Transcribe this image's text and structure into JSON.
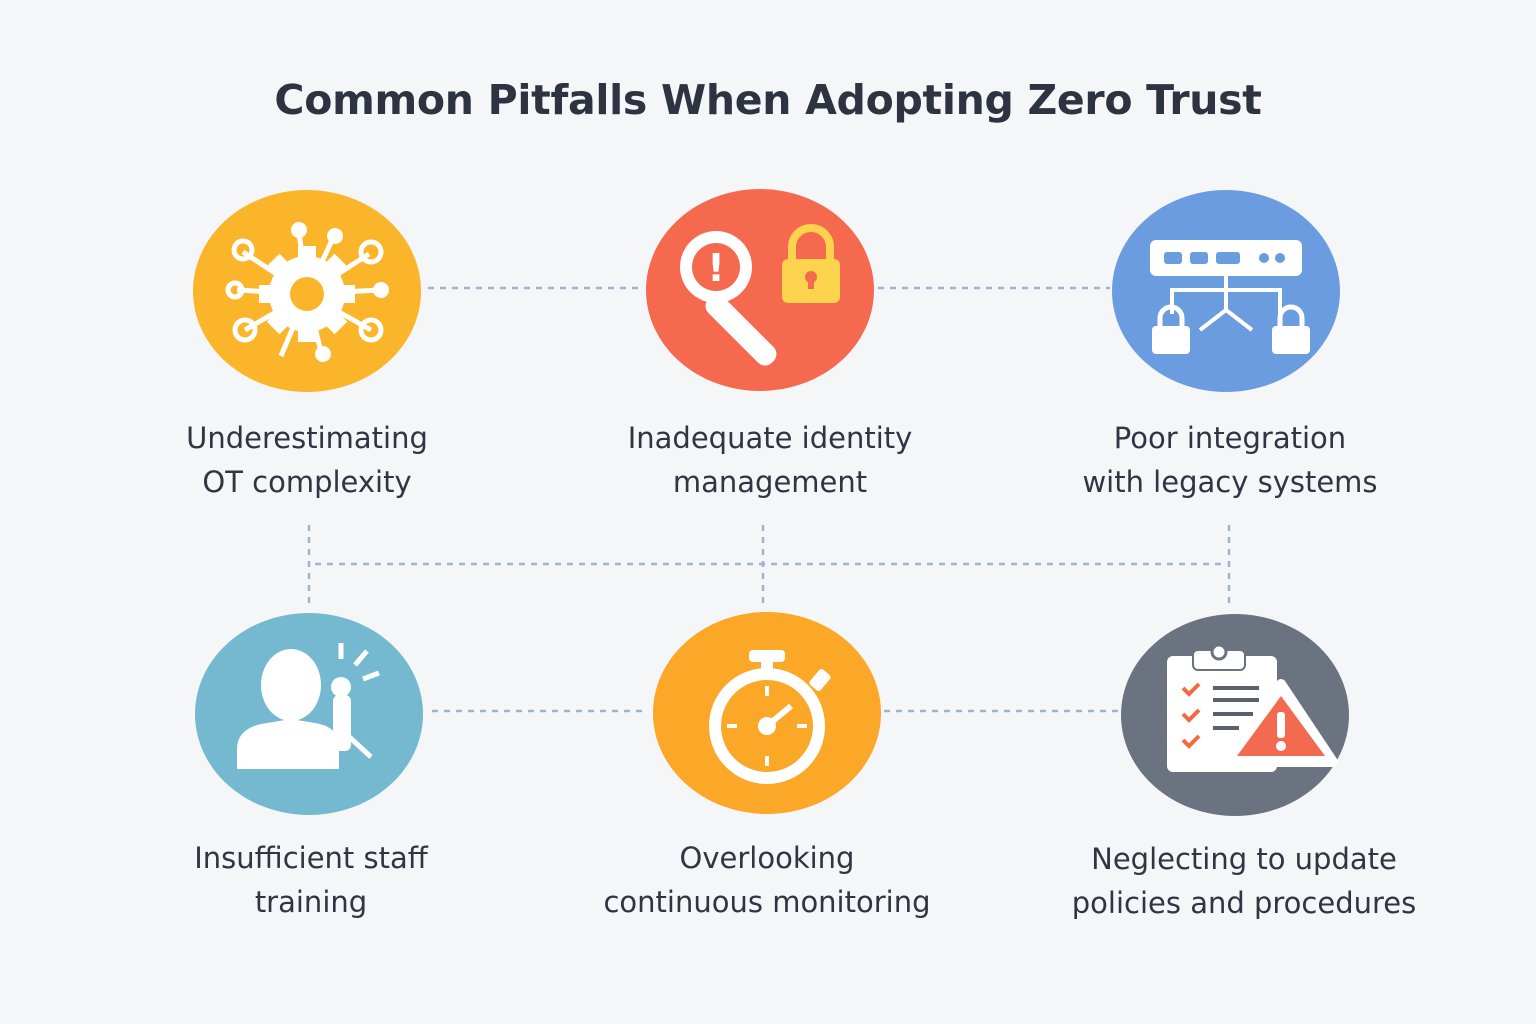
{
  "title": "Common Pitfalls When Adopting Zero Trust",
  "pitfalls": [
    {
      "line1": "Underestimating",
      "line2": "OT complexity",
      "icon": "gear-network-icon",
      "color": "#fbb52a"
    },
    {
      "line1": "Inadequate identity",
      "line2": "management",
      "icon": "key-magnifier-lock-icon",
      "color": "#f56a4f"
    },
    {
      "line1": "Poor integration",
      "line2": "with legacy systems",
      "icon": "server-locks-icon",
      "color": "#6c9ce0"
    },
    {
      "line1": "Insufficient staff",
      "line2": "training",
      "icon": "person-microphone-icon",
      "color": "#74b9cf"
    },
    {
      "line1": "Overlooking",
      "line2": "continuous monitoring",
      "icon": "stopwatch-icon",
      "color": "#fba728"
    },
    {
      "line1": "Neglecting to update",
      "line2": "policies and procedures",
      "icon": "clipboard-warning-icon",
      "color": "#6b7280"
    }
  ],
  "connector_color": "#9db3d0"
}
